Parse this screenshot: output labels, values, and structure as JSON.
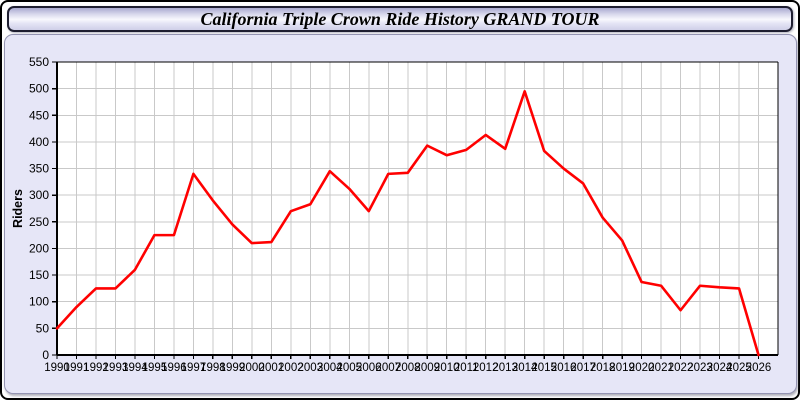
{
  "title": "California Triple Crown Ride History GRAND TOUR",
  "colors": {
    "line": "#ff0000",
    "panel_background": "#e6e6f7",
    "plot_background": "#ffffff",
    "grid": "#c9c9c9",
    "frame": "#000000",
    "text": "#000000",
    "titlebar_border": "#1e1e30"
  },
  "chart_data": {
    "type": "line",
    "title": "California Triple Crown Ride History GRAND TOUR",
    "xlabel": "",
    "ylabel": "Riders",
    "ylim": [
      0,
      550
    ],
    "ytick_step": 50,
    "grid": true,
    "legend": "none",
    "line_color": "#ff0000",
    "categories": [
      1990,
      1991,
      1992,
      1993,
      1994,
      1995,
      1996,
      1997,
      1998,
      1999,
      2000,
      2001,
      2002,
      2003,
      2004,
      2005,
      2006,
      2007,
      2008,
      2009,
      2010,
      2011,
      2012,
      2013,
      2014,
      2015,
      2016,
      2017,
      2018,
      2019,
      2020,
      2021,
      2022,
      2023,
      2024,
      2025,
      2026
    ],
    "values": [
      50,
      90,
      125,
      125,
      160,
      225,
      225,
      340,
      290,
      245,
      210,
      212,
      270,
      283,
      345,
      312,
      270,
      340,
      342,
      393,
      375,
      385,
      413,
      387,
      495,
      383,
      350,
      322,
      258,
      215,
      137,
      130,
      84,
      130,
      127,
      125,
      0
    ]
  }
}
